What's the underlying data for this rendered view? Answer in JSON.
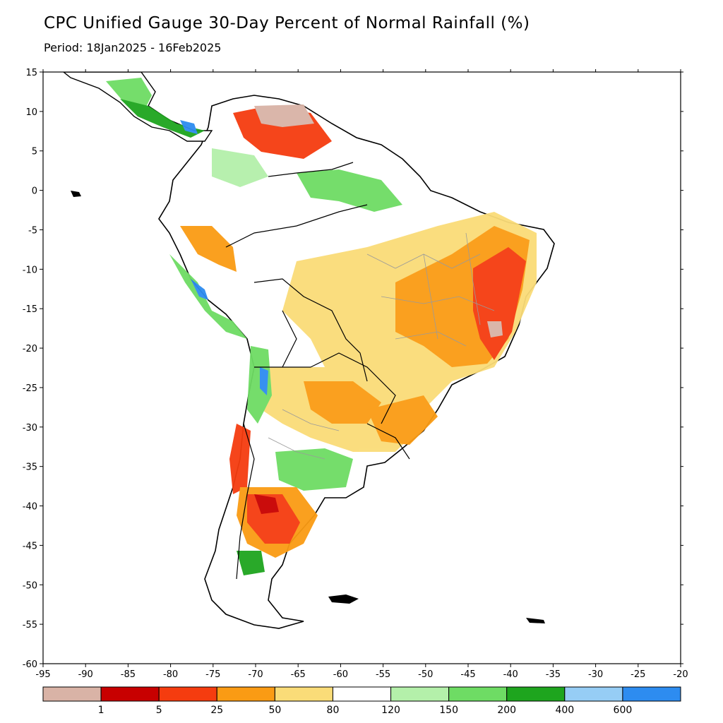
{
  "title": "CPC Unified Gauge 30-Day Percent of Normal Rainfall (%)",
  "subtitle": "Period: 18Jan2025 - 16Feb2025",
  "map": {
    "lon_range": [
      -95,
      -20
    ],
    "lat_range": [
      -60,
      15
    ],
    "x_ticks": [
      "-95",
      "-90",
      "-85",
      "-80",
      "-75",
      "-70",
      "-65",
      "-60",
      "-55",
      "-50",
      "-45",
      "-40",
      "-35",
      "-30",
      "-25",
      "-20"
    ],
    "y_ticks": [
      "15",
      "10",
      "5",
      "0",
      "-5",
      "-10",
      "-15",
      "-20",
      "-25",
      "-30",
      "-35",
      "-40",
      "-45",
      "-50",
      "-55",
      "-60"
    ],
    "region": "South America"
  },
  "colorbar": {
    "colors": [
      "#d9b3a6",
      "#c80000",
      "#f53c0f",
      "#fa9b14",
      "#fadc78",
      "#ffffff",
      "#b4f0aa",
      "#6edc64",
      "#1ea51e",
      "#96cdf5",
      "#2d8cf0"
    ],
    "labels": [
      "1",
      "5",
      "25",
      "50",
      "80",
      "120",
      "150",
      "200",
      "400",
      "600"
    ]
  }
}
